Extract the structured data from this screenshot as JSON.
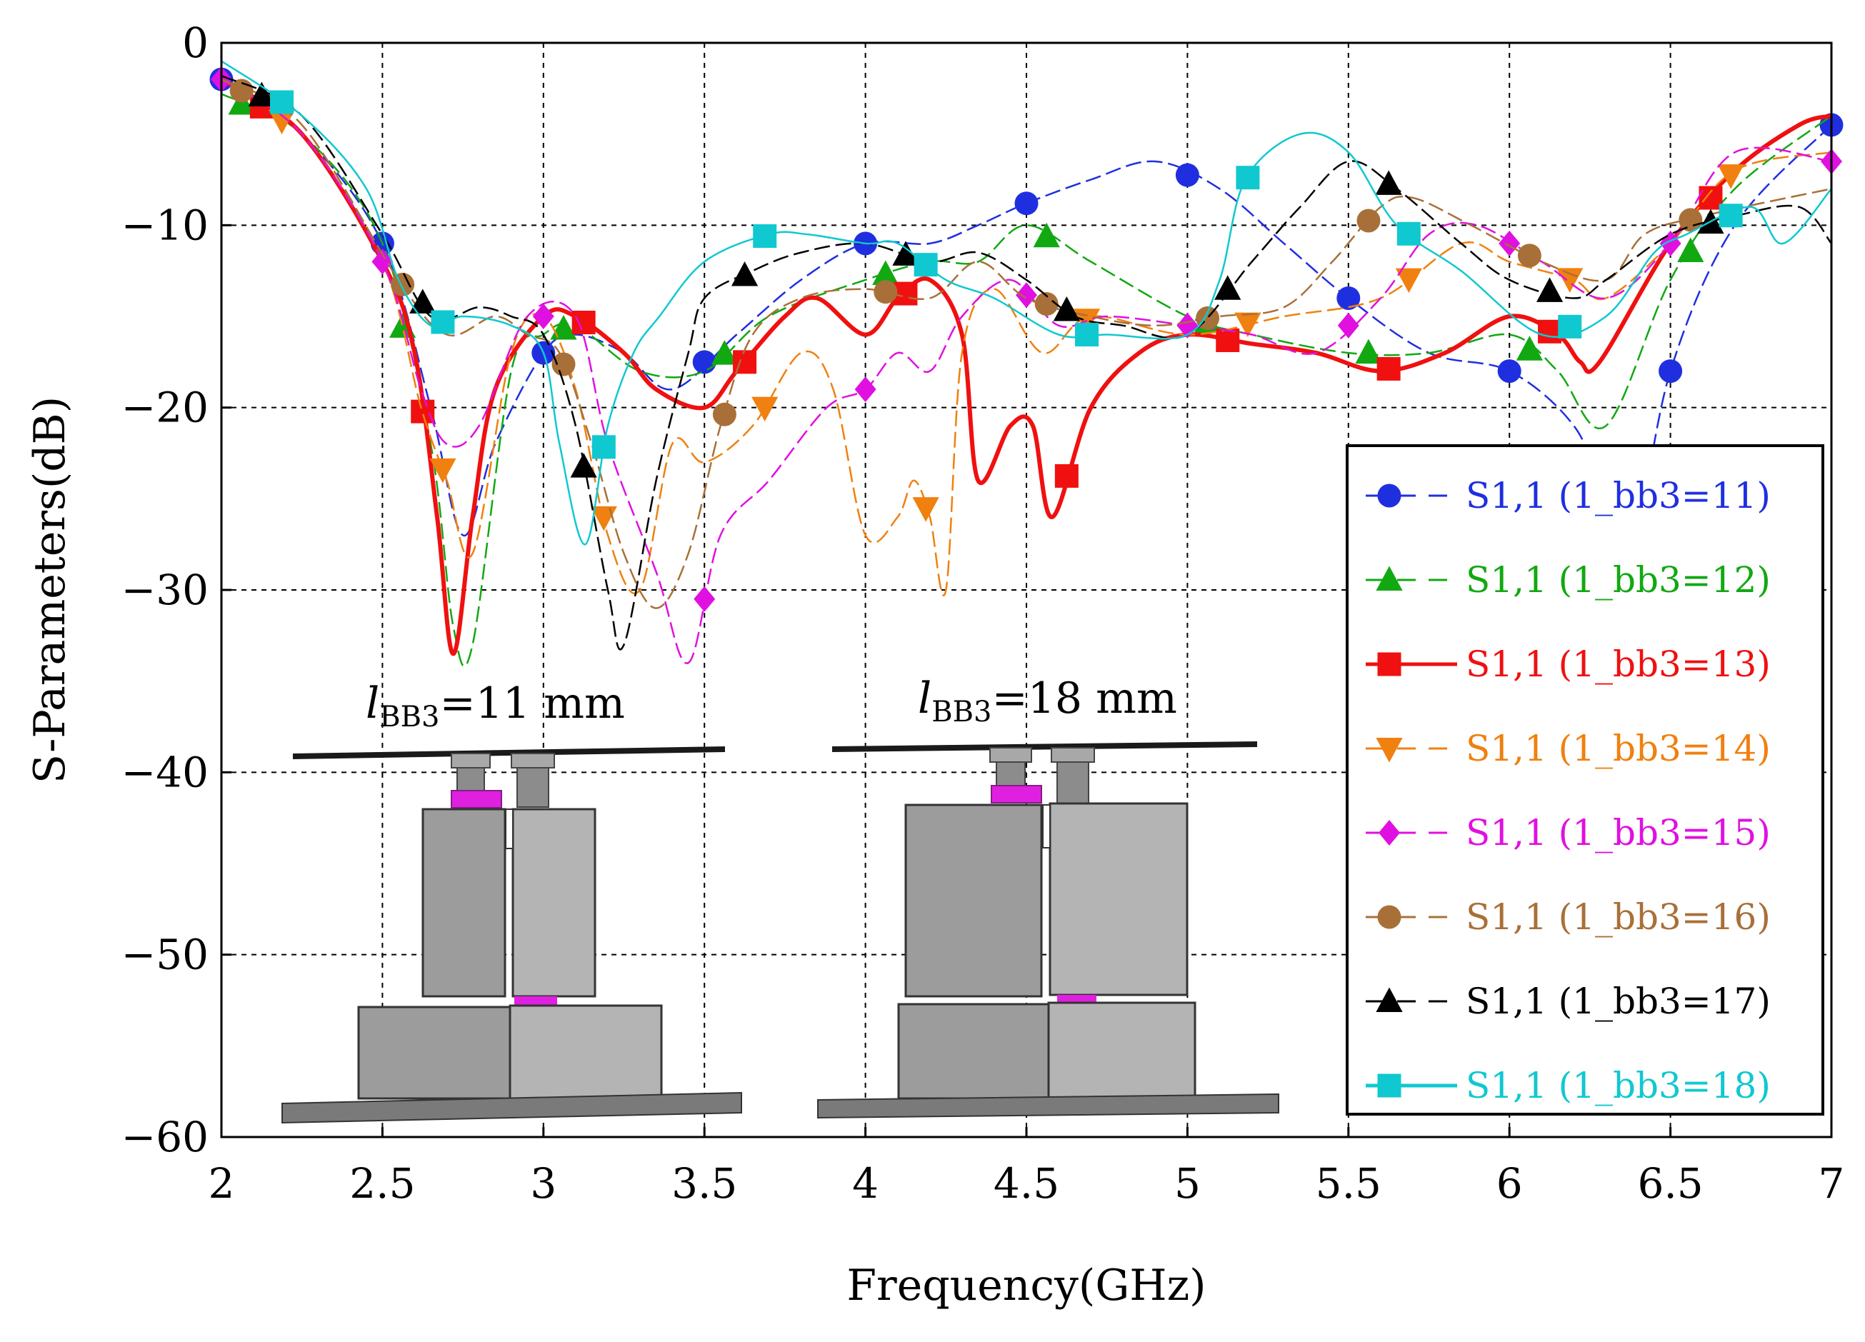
{
  "chart_data": {
    "type": "line",
    "title": "",
    "xlabel": "Frequency(GHz)",
    "ylabel": "S-Parameters(dB)",
    "xlim": [
      2,
      7
    ],
    "ylim": [
      -60,
      0
    ],
    "xticks": [
      "2",
      "2.5",
      "3",
      "3.5",
      "4",
      "4.5",
      "5",
      "5.5",
      "6",
      "6.5",
      "7"
    ],
    "yticks": [
      "0",
      "−10",
      "−20",
      "−30",
      "−40",
      "−50",
      "−60"
    ],
    "grid": true,
    "legend_position": "right",
    "series": [
      {
        "name": "S1,1 (1_bb3=11)",
        "color": "#1f2fe0",
        "marker": "circle",
        "style": "dashed",
        "x": [
          2,
          2.25,
          2.5,
          2.65,
          2.75,
          2.85,
          3.0,
          3.1,
          3.25,
          3.4,
          3.6,
          3.8,
          4.0,
          4.2,
          4.35,
          4.5,
          4.7,
          4.9,
          5.1,
          5.3,
          5.5,
          5.75,
          6.0,
          6.2,
          6.3,
          6.38,
          6.5,
          6.7,
          7.0
        ],
        "y": [
          -2,
          -5,
          -11,
          -20,
          -27,
          -22,
          -17,
          -16,
          -17,
          -19,
          -16,
          -13,
          -11,
          -11,
          -10,
          -8.8,
          -7.5,
          -6.5,
          -8,
          -11,
          -14,
          -17,
          -18,
          -21,
          -25,
          -28,
          -18,
          -10,
          -4.5
        ]
      },
      {
        "name": "S1,1 (1_bb3=12)",
        "color": "#12a812",
        "marker": "triangle-up",
        "style": "dashed",
        "x": [
          2,
          2.25,
          2.5,
          2.65,
          2.72,
          2.78,
          2.9,
          3.0,
          3.1,
          3.3,
          3.5,
          3.7,
          4.0,
          4.2,
          4.35,
          4.5,
          4.7,
          5.0,
          5.2,
          5.5,
          5.75,
          6.0,
          6.15,
          6.3,
          6.5,
          6.7,
          7.0
        ],
        "y": [
          -2.8,
          -5,
          -11,
          -22,
          -32,
          -33,
          -18,
          -16,
          -15.5,
          -18,
          -18,
          -15,
          -13,
          -12,
          -12,
          -10,
          -12,
          -15,
          -16,
          -17,
          -17,
          -16,
          -18,
          -21,
          -13,
          -8,
          -4
        ]
      },
      {
        "name": "S1,1 (1_bb3=13)",
        "color": "#f01010",
        "marker": "square",
        "style": "solid",
        "x": [
          2,
          2.25,
          2.5,
          2.6,
          2.67,
          2.72,
          2.78,
          2.85,
          3.0,
          3.1,
          3.25,
          3.35,
          3.5,
          3.6,
          3.75,
          3.85,
          4.0,
          4.1,
          4.2,
          4.3,
          4.35,
          4.45,
          4.52,
          4.58,
          4.7,
          4.85,
          5.0,
          5.2,
          5.4,
          5.6,
          5.8,
          6.0,
          6.15,
          6.22,
          6.28,
          6.5,
          6.7,
          6.9,
          7.0
        ],
        "y": [
          -2,
          -5,
          -12,
          -17,
          -26,
          -33.5,
          -26,
          -19,
          -15,
          -15,
          -17,
          -19,
          -20,
          -18,
          -15,
          -14,
          -16,
          -14,
          -13,
          -16,
          -24,
          -21,
          -21,
          -26,
          -20,
          -17,
          -16,
          -16.5,
          -17,
          -18,
          -17,
          -15,
          -16,
          -17.5,
          -17.5,
          -11,
          -7,
          -4.5,
          -4
        ]
      },
      {
        "name": "S1,1 (1_bb3=14)",
        "color": "#f0800f",
        "marker": "triangle-down",
        "style": "dashed",
        "x": [
          2,
          2.25,
          2.5,
          2.62,
          2.7,
          2.78,
          2.9,
          3.0,
          3.1,
          3.2,
          3.3,
          3.4,
          3.5,
          3.65,
          3.8,
          3.9,
          4.0,
          4.1,
          4.15,
          4.2,
          4.25,
          4.3,
          4.4,
          4.55,
          4.7,
          5.0,
          5.3,
          5.6,
          5.85,
          6.0,
          6.2,
          6.3,
          6.5,
          6.7,
          7.0
        ],
        "y": [
          -2,
          -5,
          -12,
          -20,
          -24,
          -28,
          -17,
          -15,
          -19,
          -27,
          -30,
          -22,
          -23,
          -21,
          -17,
          -19,
          -27,
          -26,
          -24,
          -26,
          -30,
          -17,
          -13.5,
          -17,
          -15,
          -16,
          -15,
          -14,
          -11,
          -12,
          -13,
          -14,
          -11,
          -7,
          -6
        ]
      },
      {
        "name": "S1,1 (1_bb3=15)",
        "color": "#e010e0",
        "marker": "diamond",
        "style": "dashed",
        "x": [
          2,
          2.25,
          2.5,
          2.62,
          2.7,
          2.8,
          2.95,
          3.1,
          3.2,
          3.35,
          3.45,
          3.55,
          3.7,
          3.88,
          4.0,
          4.1,
          4.2,
          4.3,
          4.45,
          4.6,
          4.75,
          5.0,
          5.2,
          5.4,
          5.6,
          5.75,
          5.9,
          6.1,
          6.3,
          6.5,
          6.7,
          7.0
        ],
        "y": [
          -2,
          -5,
          -12,
          -19,
          -22,
          -21,
          -15,
          -15,
          -22,
          -29,
          -34,
          -27,
          -24,
          -20,
          -19,
          -17,
          -18,
          -15,
          -13,
          -15.5,
          -15,
          -15.5,
          -16,
          -17,
          -14,
          -10.5,
          -10,
          -12,
          -14,
          -11,
          -6,
          -6.5
        ]
      },
      {
        "name": "S1,1 (1_bb3=16)",
        "color": "#a87038",
        "marker": "circle",
        "style": "dashed",
        "x": [
          2,
          2.25,
          2.55,
          2.7,
          2.85,
          2.95,
          3.05,
          3.15,
          3.25,
          3.35,
          3.45,
          3.55,
          3.65,
          3.8,
          4.0,
          4.2,
          4.35,
          4.5,
          4.7,
          4.9,
          5.1,
          5.3,
          5.45,
          5.6,
          5.7,
          5.88,
          6.1,
          6.3,
          6.42,
          6.6,
          7.0
        ],
        "y": [
          -2,
          -4.5,
          -13,
          -16,
          -15,
          -16,
          -17,
          -22,
          -28,
          -31,
          -28,
          -21,
          -16,
          -14,
          -13.5,
          -14,
          -12,
          -14,
          -15,
          -15.5,
          -15,
          -14.5,
          -12,
          -9,
          -8.5,
          -10,
          -12,
          -13,
          -10.5,
          -9.5,
          -8
        ]
      },
      {
        "name": "S1,1 (1_bb3=17)",
        "color": "#000000",
        "marker": "triangle-up",
        "style": "dashed",
        "x": [
          2,
          2.25,
          2.5,
          2.65,
          2.8,
          2.9,
          3.0,
          3.1,
          3.2,
          3.25,
          3.35,
          3.45,
          3.5,
          3.65,
          3.8,
          4.0,
          4.2,
          4.35,
          4.5,
          4.65,
          4.8,
          5.0,
          5.2,
          5.35,
          5.5,
          5.65,
          5.85,
          6.0,
          6.2,
          6.3,
          6.5,
          6.7,
          6.9,
          7.0
        ],
        "y": [
          -1.8,
          -4,
          -10.5,
          -15,
          -14.5,
          -15,
          -16,
          -21,
          -30,
          -33,
          -24,
          -17,
          -14,
          -12.5,
          -11.5,
          -11,
          -12,
          -11.5,
          -13,
          -15,
          -15.5,
          -16,
          -12,
          -9,
          -6.5,
          -8,
          -11,
          -13,
          -14,
          -13,
          -10.5,
          -9.5,
          -9,
          -11
        ]
      },
      {
        "name": "S1,1 (1_bb3=18)",
        "color": "#10c8d0",
        "marker": "square",
        "style": "solid",
        "x": [
          2,
          2.25,
          2.45,
          2.55,
          2.65,
          2.75,
          2.9,
          3.0,
          3.05,
          3.13,
          3.2,
          3.28,
          3.36,
          3.5,
          3.7,
          3.82,
          4.0,
          4.1,
          4.25,
          4.4,
          4.6,
          4.75,
          5.0,
          5.1,
          5.18,
          5.35,
          5.5,
          5.65,
          5.85,
          6.1,
          6.3,
          6.45,
          6.55,
          6.75,
          6.85,
          7.0
        ],
        "y": [
          -1,
          -4,
          -8,
          -13,
          -15.5,
          -15,
          -15.5,
          -17,
          -22,
          -27.5,
          -21,
          -17,
          -15,
          -12,
          -10.5,
          -10.5,
          -11,
          -11,
          -13,
          -14,
          -16,
          -16,
          -16,
          -13,
          -7.5,
          -5,
          -6,
          -10,
          -12.5,
          -16,
          -15,
          -11.5,
          -10.5,
          -9,
          -11,
          -8
        ]
      }
    ],
    "insets": [
      {
        "label": "l",
        "sub": "BB3",
        "suffix": "=11 mm"
      },
      {
        "label": "l",
        "sub": "BB3",
        "suffix": "=18 mm"
      }
    ]
  }
}
